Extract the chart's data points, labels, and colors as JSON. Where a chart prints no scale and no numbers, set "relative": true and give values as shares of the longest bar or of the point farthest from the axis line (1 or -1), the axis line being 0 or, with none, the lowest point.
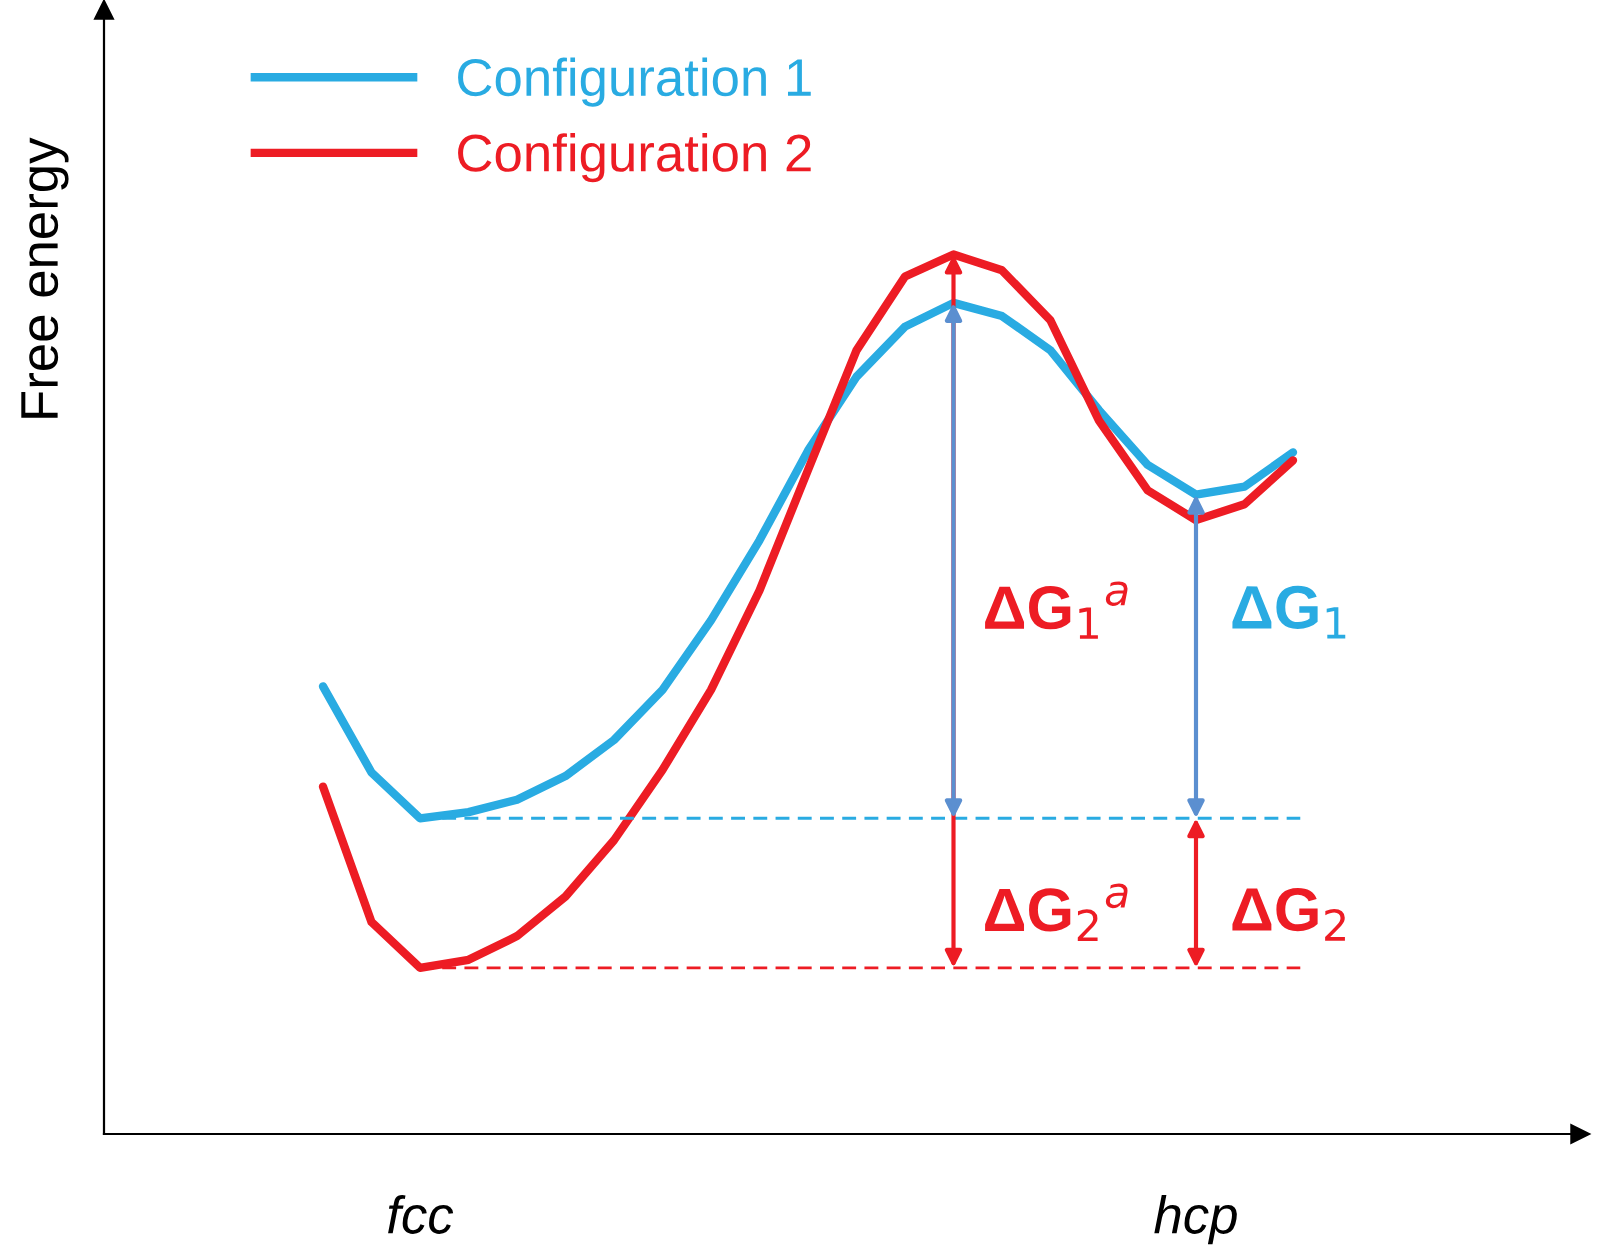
{
  "chart_data": {
    "type": "line",
    "relative": true,
    "ylabel": "Free energy",
    "legend": "top left",
    "grid": false,
    "tick_labels": "x",
    "categories": [
      null,
      null,
      "fcc",
      null,
      null,
      null,
      null,
      null,
      null,
      null,
      null,
      null,
      null,
      null,
      null,
      null,
      null,
      null,
      "hcp",
      null,
      null
    ],
    "series": [
      {
        "name": "Configuration 1",
        "color": "#29abe2",
        "values": [
          0.509,
          0.411,
          0.359,
          0.366,
          0.38,
          0.407,
          0.448,
          0.505,
          0.584,
          0.675,
          0.777,
          0.861,
          0.918,
          0.945,
          0.93,
          0.891,
          0.823,
          0.761,
          0.727,
          0.736,
          0.775
        ]
      },
      {
        "name": "Configuration 2",
        "color": "#ed1c24",
        "values": [
          0.395,
          0.241,
          0.189,
          0.198,
          0.225,
          0.27,
          0.334,
          0.414,
          0.505,
          0.618,
          0.755,
          0.891,
          0.975,
          1.0,
          0.982,
          0.925,
          0.811,
          0.732,
          0.698,
          0.716,
          0.766
        ]
      }
    ],
    "ref_lines": [
      {
        "axis": "y",
        "value": 0.359,
        "color": "#29abe2",
        "line_style": "dashed"
      },
      {
        "axis": "y",
        "value": 0.189,
        "color": "#ed1c24",
        "line_style": "dashed"
      }
    ],
    "annotations": [
      "ΔG$_{1}$$^{a}$",
      "ΔG$_{2}$$^{a}$",
      "ΔG$_{1}$",
      "ΔG$_{2}$"
    ]
  }
}
